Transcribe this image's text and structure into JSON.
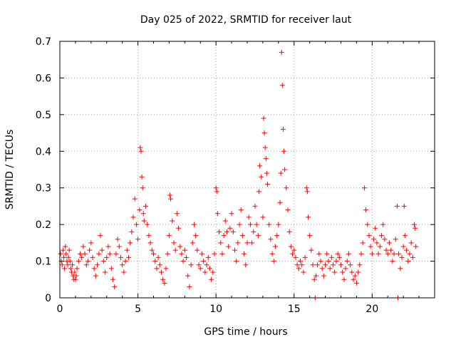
{
  "chart_data": {
    "type": "scatter",
    "title": "Day 025 of 2022, SRMTID for receiver laut",
    "xlabel": "GPS time / hours",
    "ylabel": "SRMTID / TECUs",
    "xlim": [
      0,
      24
    ],
    "ylim": [
      0,
      0.7
    ],
    "x_ticks": [
      0,
      5,
      10,
      15,
      20
    ],
    "x_tick_labels": [
      "0",
      "5",
      "10",
      "15",
      "20"
    ],
    "y_ticks": [
      0,
      0.1,
      0.2,
      0.3,
      0.4,
      0.5,
      0.6,
      0.7
    ],
    "y_tick_labels": [
      "0",
      "0.1",
      "0.2",
      "0.3",
      "0.4",
      "0.5",
      "0.6",
      "0.7"
    ],
    "grid": true,
    "marker": "+",
    "series": [
      {
        "name": "SRMTID",
        "color": "#ff0000",
        "points": [
          [
            0.05,
            0.12
          ],
          [
            0.1,
            0.1
          ],
          [
            0.15,
            0.09
          ],
          [
            0.2,
            0.13
          ],
          [
            0.25,
            0.11
          ],
          [
            0.3,
            0.08
          ],
          [
            0.35,
            0.14
          ],
          [
            0.4,
            0.12
          ],
          [
            0.45,
            0.1
          ],
          [
            0.5,
            0.09
          ],
          [
            0.55,
            0.11
          ],
          [
            0.6,
            0.13
          ],
          [
            0.65,
            0.1
          ],
          [
            0.7,
            0.08
          ],
          [
            0.75,
            0.07
          ],
          [
            0.8,
            0.09
          ],
          [
            0.85,
            0.06
          ],
          [
            0.9,
            0.05
          ],
          [
            0.95,
            0.07
          ],
          [
            1.0,
            0.05
          ],
          [
            1.05,
            0.06
          ],
          [
            1.1,
            0.08
          ],
          [
            1.2,
            0.1
          ],
          [
            1.3,
            0.12
          ],
          [
            1.4,
            0.11
          ],
          [
            1.5,
            0.14
          ],
          [
            1.6,
            0.12
          ],
          [
            1.7,
            0.09
          ],
          [
            1.8,
            0.1
          ],
          [
            1.9,
            0.13
          ],
          [
            2.0,
            0.15
          ],
          [
            2.1,
            0.11
          ],
          [
            2.2,
            0.08
          ],
          [
            2.3,
            0.06
          ],
          [
            2.4,
            0.09
          ],
          [
            2.5,
            0.12
          ],
          [
            2.6,
            0.17
          ],
          [
            2.7,
            0.13
          ],
          [
            2.8,
            0.1
          ],
          [
            2.9,
            0.07
          ],
          [
            3.0,
            0.11
          ],
          [
            3.1,
            0.14
          ],
          [
            3.2,
            0.12
          ],
          [
            3.3,
            0.08
          ],
          [
            3.4,
            0.05
          ],
          [
            3.5,
            0.03
          ],
          [
            3.6,
            0.12
          ],
          [
            3.7,
            0.16
          ],
          [
            3.8,
            0.14
          ],
          [
            3.9,
            0.11
          ],
          [
            4.0,
            0.09
          ],
          [
            4.1,
            0.07
          ],
          [
            4.2,
            0.1
          ],
          [
            4.3,
            0.13
          ],
          [
            4.4,
            0.11
          ],
          [
            4.5,
            0.15
          ],
          [
            4.6,
            0.18
          ],
          [
            4.7,
            0.22
          ],
          [
            4.8,
            0.27
          ],
          [
            4.9,
            0.2
          ],
          [
            5.0,
            0.16
          ],
          [
            5.1,
            0.24
          ],
          [
            5.15,
            0.41
          ],
          [
            5.2,
            0.4
          ],
          [
            5.25,
            0.33
          ],
          [
            5.3,
            0.3
          ],
          [
            5.35,
            0.23
          ],
          [
            5.4,
            0.21
          ],
          [
            5.5,
            0.25
          ],
          [
            5.6,
            0.2
          ],
          [
            5.7,
            0.17
          ],
          [
            5.8,
            0.15
          ],
          [
            5.9,
            0.13
          ],
          [
            6.0,
            0.12
          ],
          [
            6.1,
            0.1
          ],
          [
            6.2,
            0.08
          ],
          [
            6.3,
            0.11
          ],
          [
            6.4,
            0.09
          ],
          [
            6.5,
            0.07
          ],
          [
            6.6,
            0.05
          ],
          [
            6.7,
            0.04
          ],
          [
            6.8,
            0.08
          ],
          [
            6.9,
            0.12
          ],
          [
            7.0,
            0.17
          ],
          [
            7.05,
            0.28
          ],
          [
            7.1,
            0.27
          ],
          [
            7.2,
            0.21
          ],
          [
            7.3,
            0.15
          ],
          [
            7.4,
            0.13
          ],
          [
            7.5,
            0.23
          ],
          [
            7.6,
            0.19
          ],
          [
            7.7,
            0.14
          ],
          [
            7.8,
            0.12
          ],
          [
            7.9,
            0.1
          ],
          [
            8.0,
            0.13
          ],
          [
            8.1,
            0.11
          ],
          [
            8.2,
            0.06
          ],
          [
            8.3,
            0.03
          ],
          [
            8.4,
            0.09
          ],
          [
            8.5,
            0.15
          ],
          [
            8.6,
            0.2
          ],
          [
            8.7,
            0.17
          ],
          [
            8.8,
            0.13
          ],
          [
            8.9,
            0.09
          ],
          [
            9.0,
            0.08
          ],
          [
            9.1,
            0.12
          ],
          [
            9.2,
            0.1
          ],
          [
            9.3,
            0.07
          ],
          [
            9.4,
            0.09
          ],
          [
            9.5,
            0.11
          ],
          [
            9.6,
            0.08
          ],
          [
            9.7,
            0.05
          ],
          [
            9.8,
            0.07
          ],
          [
            9.9,
            0.12
          ],
          [
            10.0,
            0.3
          ],
          [
            10.05,
            0.29
          ],
          [
            10.1,
            0.23
          ],
          [
            10.2,
            0.18
          ],
          [
            10.3,
            0.15
          ],
          [
            10.4,
            0.12
          ],
          [
            10.5,
            0.17
          ],
          [
            10.6,
            0.21
          ],
          [
            10.7,
            0.18
          ],
          [
            10.8,
            0.14
          ],
          [
            10.9,
            0.19
          ],
          [
            11.0,
            0.23
          ],
          [
            11.1,
            0.18
          ],
          [
            11.2,
            0.13
          ],
          [
            11.3,
            0.1
          ],
          [
            11.4,
            0.15
          ],
          [
            11.5,
            0.2
          ],
          [
            11.6,
            0.24
          ],
          [
            11.7,
            0.17
          ],
          [
            11.8,
            0.12
          ],
          [
            11.9,
            0.09
          ],
          [
            12.0,
            0.15
          ],
          [
            12.1,
            0.22
          ],
          [
            12.2,
            0.2
          ],
          [
            12.3,
            0.15
          ],
          [
            12.4,
            0.18
          ],
          [
            12.5,
            0.25
          ],
          [
            12.6,
            0.2
          ],
          [
            12.7,
            0.17
          ],
          [
            12.75,
            0.29
          ],
          [
            12.8,
            0.36
          ],
          [
            12.9,
            0.33
          ],
          [
            13.0,
            0.22
          ],
          [
            13.05,
            0.49
          ],
          [
            13.1,
            0.45
          ],
          [
            13.15,
            0.41
          ],
          [
            13.2,
            0.38
          ],
          [
            13.25,
            0.34
          ],
          [
            13.3,
            0.31
          ],
          [
            13.4,
            0.2
          ],
          [
            13.5,
            0.16
          ],
          [
            13.6,
            0.12
          ],
          [
            13.7,
            0.1
          ],
          [
            13.8,
            0.14
          ],
          [
            13.9,
            0.17
          ],
          [
            14.0,
            0.2
          ],
          [
            14.1,
            0.26
          ],
          [
            14.15,
            0.34
          ],
          [
            14.2,
            0.67
          ],
          [
            14.25,
            0.58
          ],
          [
            14.3,
            0.46
          ],
          [
            14.35,
            0.4
          ],
          [
            14.4,
            0.35
          ],
          [
            14.5,
            0.3
          ],
          [
            14.6,
            0.24
          ],
          [
            14.7,
            0.18
          ],
          [
            14.8,
            0.14
          ],
          [
            14.9,
            0.12
          ],
          [
            15.0,
            0.13
          ],
          [
            15.1,
            0.11
          ],
          [
            15.2,
            0.09
          ],
          [
            15.3,
            0.08
          ],
          [
            15.4,
            0.1
          ],
          [
            15.5,
            0.09
          ],
          [
            15.6,
            0.07
          ],
          [
            15.7,
            0.11
          ],
          [
            15.8,
            0.3
          ],
          [
            15.85,
            0.29
          ],
          [
            15.9,
            0.22
          ],
          [
            16.0,
            0.17
          ],
          [
            16.1,
            0.13
          ],
          [
            16.2,
            0.09
          ],
          [
            16.3,
            0.05
          ],
          [
            16.35,
            0.0
          ],
          [
            16.4,
            0.06
          ],
          [
            16.5,
            0.09
          ],
          [
            16.6,
            0.12
          ],
          [
            16.7,
            0.1
          ],
          [
            16.8,
            0.08
          ],
          [
            16.9,
            0.06
          ],
          [
            17.0,
            0.09
          ],
          [
            17.1,
            0.12
          ],
          [
            17.2,
            0.1
          ],
          [
            17.3,
            0.08
          ],
          [
            17.4,
            0.11
          ],
          [
            17.5,
            0.09
          ],
          [
            17.6,
            0.07
          ],
          [
            17.7,
            0.1
          ],
          [
            17.8,
            0.12
          ],
          [
            17.9,
            0.11
          ],
          [
            18.0,
            0.09
          ],
          [
            18.1,
            0.07
          ],
          [
            18.2,
            0.05
          ],
          [
            18.3,
            0.08
          ],
          [
            18.4,
            0.1
          ],
          [
            18.5,
            0.12
          ],
          [
            18.6,
            0.09
          ],
          [
            18.7,
            0.07
          ],
          [
            18.8,
            0.05
          ],
          [
            18.9,
            0.06
          ],
          [
            19.0,
            0.04
          ],
          [
            19.1,
            0.07
          ],
          [
            19.2,
            0.09
          ],
          [
            19.3,
            0.12
          ],
          [
            19.4,
            0.15
          ],
          [
            19.5,
            0.3
          ],
          [
            19.6,
            0.24
          ],
          [
            19.7,
            0.2
          ],
          [
            19.8,
            0.17
          ],
          [
            19.9,
            0.14
          ],
          [
            20.0,
            0.12
          ],
          [
            20.1,
            0.16
          ],
          [
            20.2,
            0.19
          ],
          [
            20.3,
            0.15
          ],
          [
            20.4,
            0.12
          ],
          [
            20.5,
            0.14
          ],
          [
            20.6,
            0.17
          ],
          [
            20.7,
            0.2
          ],
          [
            20.8,
            0.16
          ],
          [
            20.9,
            0.13
          ],
          [
            21.0,
            0.12
          ],
          [
            21.1,
            0.15
          ],
          [
            21.2,
            0.13
          ],
          [
            21.3,
            0.1
          ],
          [
            21.4,
            0.12
          ],
          [
            21.5,
            0.16
          ],
          [
            21.6,
            0.25
          ],
          [
            21.65,
            0.0
          ],
          [
            21.7,
            0.12
          ],
          [
            21.8,
            0.08
          ],
          [
            21.9,
            0.11
          ],
          [
            22.0,
            0.14
          ],
          [
            22.05,
            0.25
          ],
          [
            22.1,
            0.17
          ],
          [
            22.2,
            0.13
          ],
          [
            22.3,
            0.1
          ],
          [
            22.4,
            0.12
          ],
          [
            22.5,
            0.15
          ],
          [
            22.6,
            0.11
          ],
          [
            22.7,
            0.2
          ],
          [
            22.75,
            0.19
          ],
          [
            22.8,
            0.14
          ]
        ]
      }
    ]
  }
}
